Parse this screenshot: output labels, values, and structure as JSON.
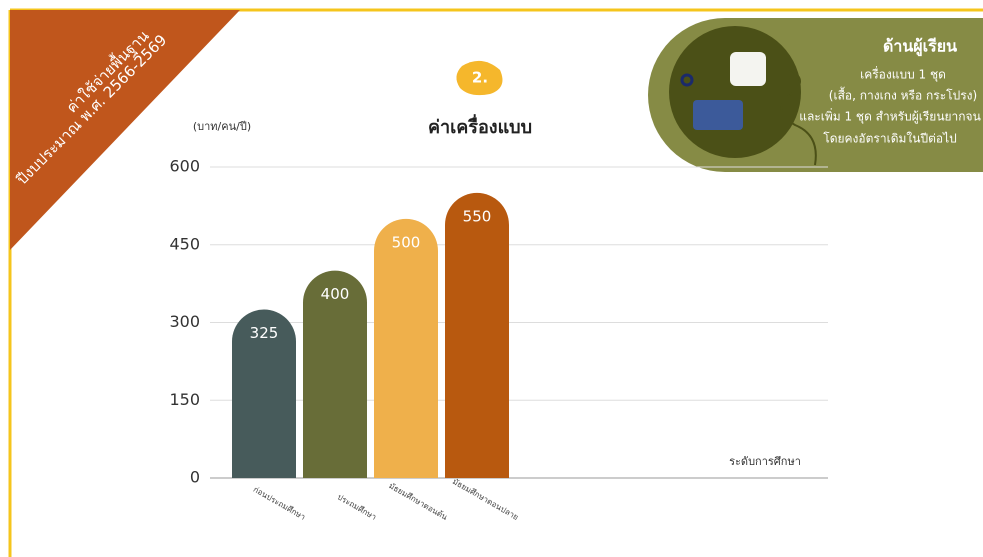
{
  "corner": {
    "line1": "ค่าใช้จ่ายพื้นฐาน",
    "line2": "ปีงบประมาณ พ.ศ. 2566-2569"
  },
  "panel": {
    "heading": "ด้านผู้เรียน",
    "lines": [
      "เครื่องแบบ 1 ชุด",
      "(เสื้อ, กางเกง หรือ กระโปรง)",
      "และเพิ่ม 1 ชุด สำหรับผู้เรียนยากจน",
      "โดยคงอัตราเดิมในปีต่อไป"
    ]
  },
  "chart_data": {
    "type": "bar",
    "badge": "2.",
    "title": "ค่าเครื่องแบบ",
    "y_label": "(บาท/คน/ปี)",
    "x_label": "ระดับการศึกษา",
    "categories": [
      "ก่อนประถมศึกษา",
      "ประถมศึกษา",
      "มัธยมศึกษาตอนต้น",
      "มัธยมศึกษาตอนปลาย"
    ],
    "values": [
      325,
      400,
      500,
      550
    ],
    "colors": [
      "#475b5b",
      "#686d38",
      "#efb04b",
      "#b8590f"
    ],
    "ylim": [
      0,
      600
    ],
    "yticks": [
      0,
      150,
      300,
      450,
      600
    ],
    "grid": true
  }
}
